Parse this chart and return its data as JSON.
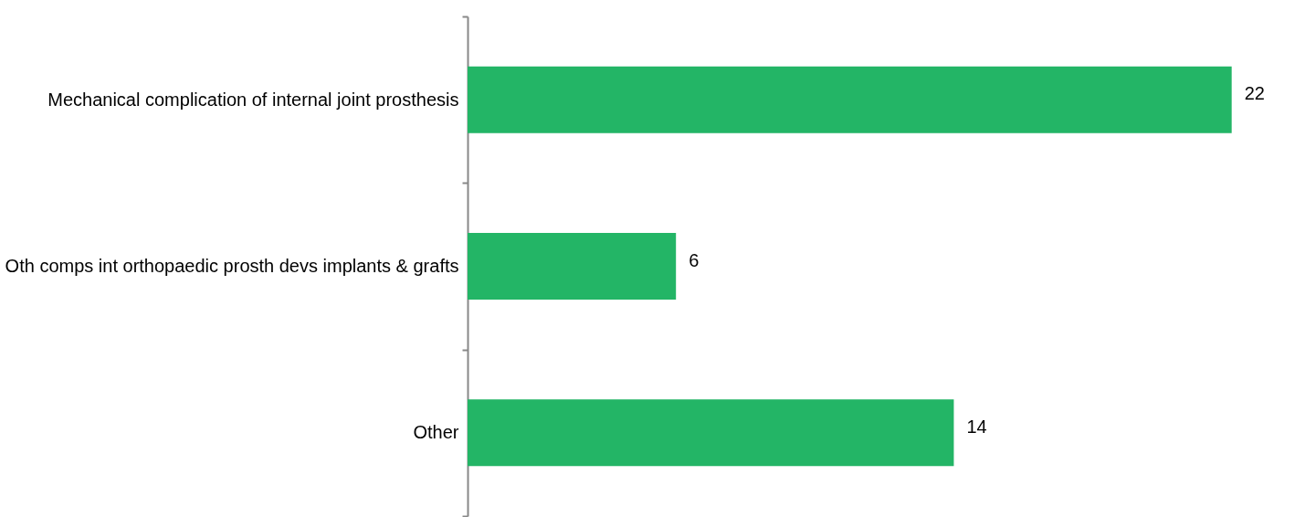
{
  "chart_data": {
    "type": "bar",
    "orientation": "horizontal",
    "categories": [
      "Mechanical complication of internal joint prosthesis",
      "Oth comps int orthopaedic prosth devs implants & grafts",
      "Other"
    ],
    "values": [
      22,
      6,
      14
    ],
    "color": "#23b566",
    "data_labels": true,
    "grid": false
  }
}
